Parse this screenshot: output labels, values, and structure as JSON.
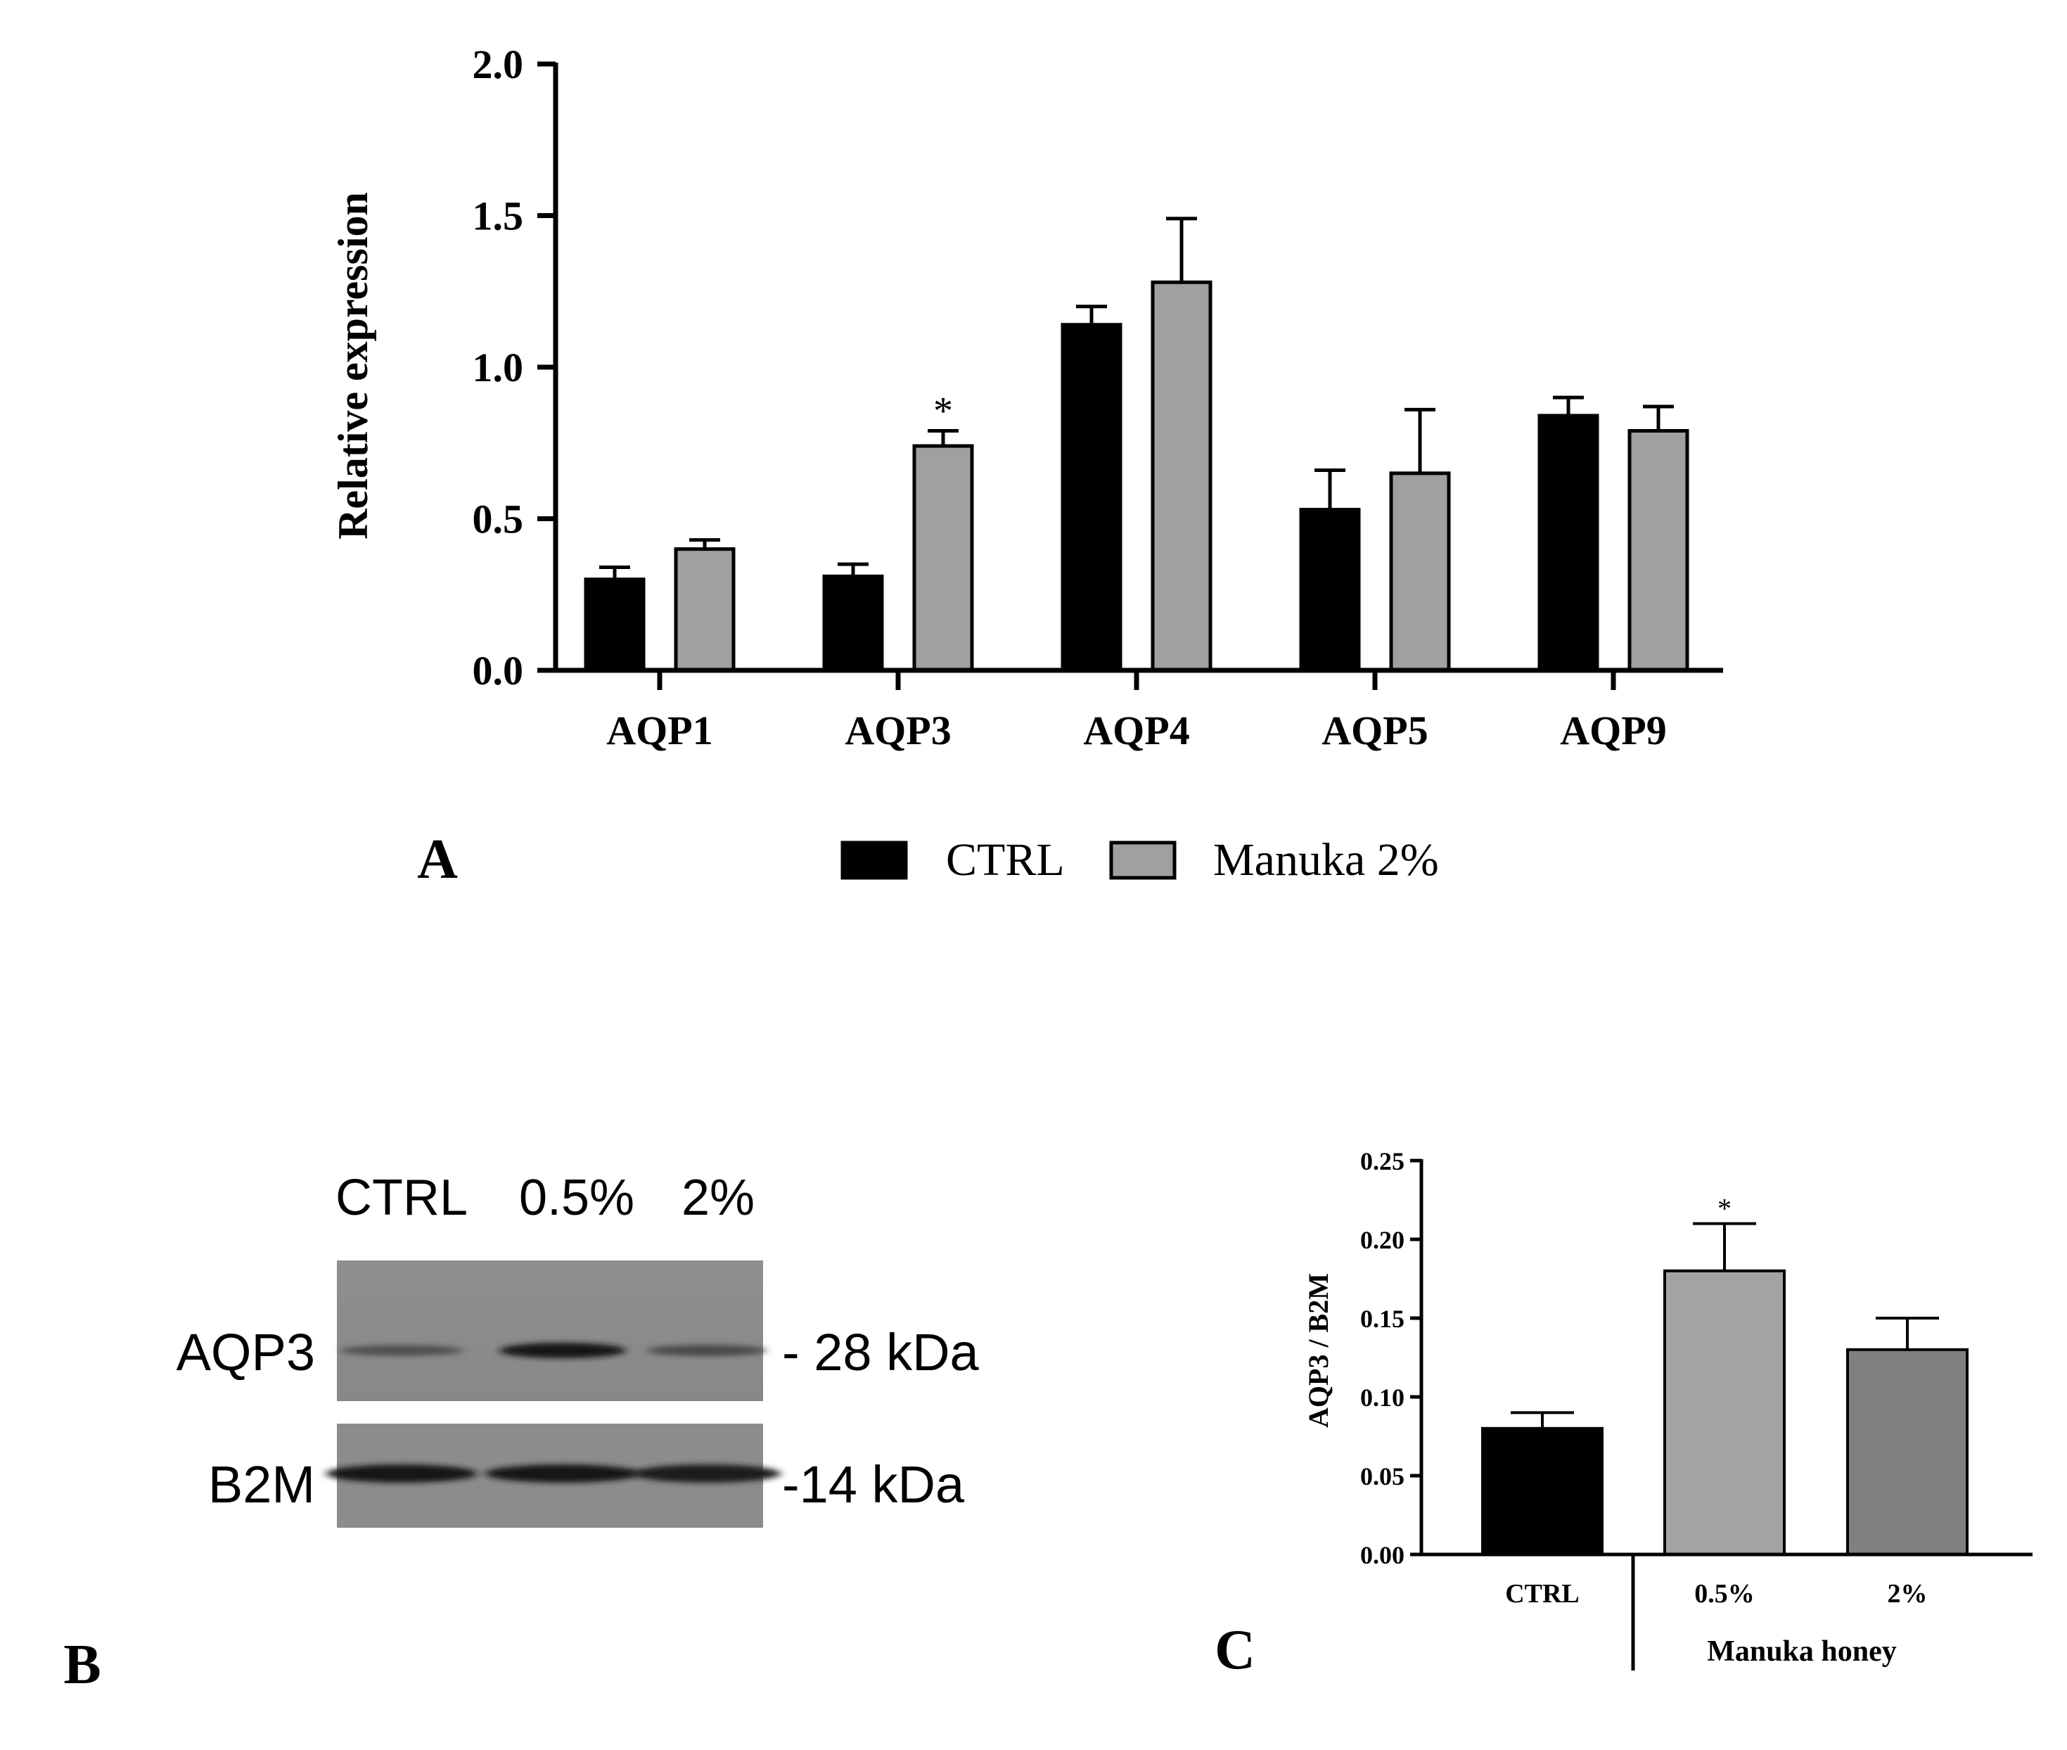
{
  "chart_data": [
    {
      "panel": "A",
      "type": "bar",
      "categories": [
        "AQP1",
        "AQP3",
        "AQP4",
        "AQP5",
        "AQP9"
      ],
      "series": [
        {
          "name": "CTRL",
          "color": "#000000",
          "values": [
            0.3,
            0.31,
            1.14,
            0.53,
            0.84
          ],
          "errors": [
            0.04,
            0.04,
            0.06,
            0.13,
            0.06
          ]
        },
        {
          "name": "Manuka 2%",
          "color": "#a0a0a3",
          "values": [
            0.4,
            0.74,
            1.28,
            0.65,
            0.79
          ],
          "errors": [
            0.03,
            0.05,
            0.21,
            0.21,
            0.08
          ]
        }
      ],
      "annotations": [
        {
          "category": "AQP3",
          "series": "Manuka 2%",
          "text": "*"
        }
      ],
      "ylabel": "Relative expression",
      "xlabel": "",
      "ylim": [
        0,
        2.0
      ],
      "yticks": [
        "0.0",
        "0.5",
        "1.0",
        "1.5",
        "2.0"
      ],
      "legend_position": "bottom",
      "panel_label": "A"
    },
    {
      "panel": "C",
      "type": "bar",
      "categories": [
        "CTRL",
        "0.5%",
        "2%"
      ],
      "values": [
        0.08,
        0.18,
        0.13
      ],
      "errors": [
        0.01,
        0.03,
        0.02
      ],
      "colors": [
        "#000000",
        "#a3a3a6",
        "#808080"
      ],
      "annotations": [
        {
          "category": "0.5%",
          "text": "*"
        }
      ],
      "ylabel": "AQP3 / B2M",
      "group_label": "Manuka honey",
      "ylim": [
        0,
        0.25
      ],
      "yticks": [
        "0.00",
        "0.05",
        "0.10",
        "0.15",
        "0.20",
        "0.25"
      ],
      "panel_label": "C"
    }
  ],
  "blot": {
    "panel_label": "B",
    "lanes": [
      "CTRL",
      "0.5%",
      "2%"
    ],
    "rows": [
      {
        "protein": "AQP3",
        "size": "- 28 kDa",
        "band_intensity": [
          0.45,
          1.0,
          0.5
        ]
      },
      {
        "protein": "B2M",
        "size": "-14 kDa",
        "band_intensity": [
          0.95,
          0.95,
          0.9
        ]
      }
    ]
  }
}
